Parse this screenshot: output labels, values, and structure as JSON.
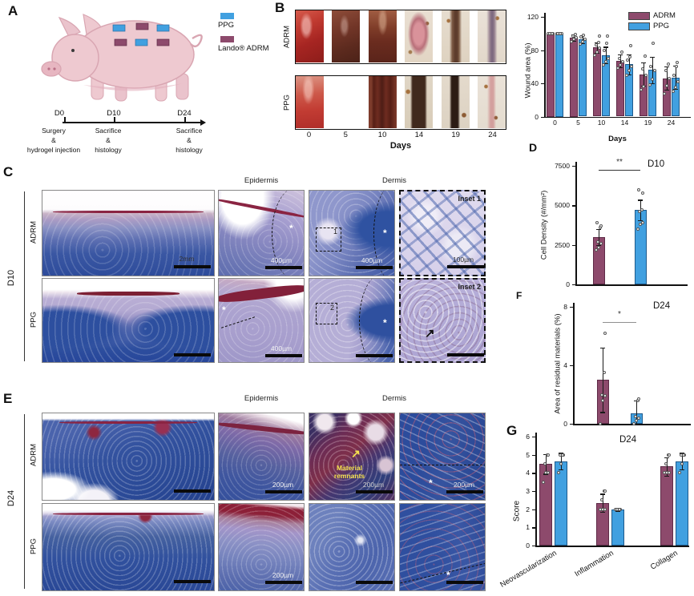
{
  "colors": {
    "adrm": "#8d4a6c",
    "ppg": "#41a0e0"
  },
  "panelA": {
    "letter": "A",
    "legend": [
      {
        "key": "ppg",
        "label": "PPG"
      },
      {
        "key": "adrm",
        "label": "Lando® ADRM"
      }
    ],
    "timeline": [
      {
        "day": "D0",
        "l1": "Surgery",
        "l2": "&",
        "l3": "hydrogel injection"
      },
      {
        "day": "D10",
        "l1": "Sacrifice",
        "l2": "&",
        "l3": "histology"
      },
      {
        "day": "D24",
        "l1": "Sacrifice",
        "l2": "&",
        "l3": "histology"
      }
    ]
  },
  "panelB": {
    "letter": "B",
    "rows": [
      "ADRM",
      "PPG"
    ],
    "days": [
      "0",
      "5",
      "10",
      "14",
      "19",
      "24"
    ],
    "xlabel": "Days"
  },
  "panelC": {
    "letter": "C",
    "group_label": "D10",
    "rows": [
      "ADRM",
      "PPG"
    ],
    "headers": [
      "Epidermis",
      "Dermis"
    ],
    "scale_overview": "2mm",
    "scale_epidermis": "400µm",
    "scale_dermis": "400µm",
    "inset1_label": "Inset 1",
    "inset1_scale": "100µm",
    "inset2_label": "Inset 2",
    "box1": "1",
    "box2": "2",
    "asterisk": "*",
    "arrow": "↗"
  },
  "panelD": {
    "letter": "D"
  },
  "panelE": {
    "letter": "E",
    "group_label": "D24",
    "rows": [
      "ADRM",
      "PPG"
    ],
    "headers": [
      "Epidermis",
      "Dermis"
    ],
    "scale": "200µm",
    "material_label": "Material remnants",
    "asterisk": "*",
    "arrow": "↗"
  },
  "panelF": {
    "letter": "F"
  },
  "panelG": {
    "letter": "G"
  },
  "chart_data": [
    {
      "id": "wound_area",
      "type": "bar",
      "ylabel": "Wound area (%)",
      "xlabel": "Days",
      "ylim": [
        0,
        120
      ],
      "yticks": [
        0,
        40,
        80,
        120
      ],
      "categories": [
        "0",
        "5",
        "10",
        "14",
        "19",
        "24"
      ],
      "legend_position": "top-right",
      "series": [
        {
          "name": "ADRM",
          "color_key": "adrm",
          "values": [
            100,
            95,
            83,
            67,
            51,
            46
          ],
          "errors": [
            1,
            4,
            6,
            8,
            14,
            14
          ],
          "points": [
            [
              100,
              100,
              100,
              100,
              100
            ],
            [
              90,
              93,
              95,
              97,
              99
            ],
            [
              74,
              78,
              82,
              86,
              89,
              97
            ],
            [
              58,
              62,
              66,
              70,
              78
            ],
            [
              32,
              36,
              50,
              57,
              73
            ],
            [
              27,
              37,
              46,
              55,
              63
            ]
          ]
        },
        {
          "name": "PPG",
          "color_key": "ppg",
          "values": [
            100,
            93,
            74,
            63,
            56,
            47
          ],
          "errors": [
            1,
            5,
            10,
            12,
            16,
            14
          ],
          "points": [
            [
              100,
              100,
              100,
              100,
              100
            ],
            [
              87,
              90,
              93,
              96,
              98
            ],
            [
              62,
              66,
              70,
              80,
              88,
              97
            ],
            [
              50,
              55,
              60,
              68,
              72,
              85
            ],
            [
              38,
              45,
              55,
              60,
              88
            ],
            [
              30,
              35,
              42,
              50,
              60,
              65
            ]
          ]
        }
      ]
    },
    {
      "id": "cell_density",
      "type": "bar",
      "corner_label": "D10",
      "ylabel": "Cell Density (#/mm²)",
      "ylim": [
        0,
        7500
      ],
      "yticks": [
        0,
        2500,
        5000,
        7500
      ],
      "categories": [
        ""
      ],
      "sig_label": "**",
      "series": [
        {
          "name": "ADRM",
          "color_key": "adrm",
          "values": [
            3000
          ],
          "errors": [
            500
          ],
          "points": [
            [
              2200,
              2350,
              2600,
              2700,
              3600,
              3700,
              3900
            ]
          ]
        },
        {
          "name": "PPG",
          "color_key": "ppg",
          "values": [
            4700
          ],
          "errors": [
            650
          ],
          "points": [
            [
              3500,
              3800,
              3900,
              4600,
              4700,
              5800,
              6000
            ]
          ]
        }
      ]
    },
    {
      "id": "residual_materials",
      "type": "bar",
      "corner_label": "D24",
      "ylabel": "Area of residual materials (%)",
      "ylim": [
        0,
        8
      ],
      "yticks": [
        0,
        4,
        8
      ],
      "categories": [
        ""
      ],
      "sig_label": "*",
      "series": [
        {
          "name": "ADRM",
          "color_key": "adrm",
          "values": [
            3.0
          ],
          "errors": [
            2.2
          ],
          "points": [
            [
              0,
              1.6,
              1.9,
              2.0,
              3.5,
              6.2
            ]
          ]
        },
        {
          "name": "PPG",
          "color_key": "ppg",
          "values": [
            0.7
          ],
          "errors": [
            0.9
          ],
          "points": [
            [
              0,
              0.2,
              0.4,
              0.5,
              1.6,
              1.7
            ]
          ]
        }
      ]
    },
    {
      "id": "score",
      "type": "bar",
      "corner_label": "D24",
      "ylabel": "Score",
      "ylim": [
        0,
        6
      ],
      "yticks": [
        0,
        1,
        2,
        3,
        4,
        5,
        6
      ],
      "categories": [
        "Neovascularization",
        "Inflammation",
        "Collagen"
      ],
      "series": [
        {
          "name": "ADRM",
          "color_key": "adrm",
          "values": [
            4.5,
            2.35,
            4.35
          ],
          "errors": [
            0.55,
            0.5,
            0.5
          ],
          "points": [
            [
              3.5,
              4,
              4,
              4.5,
              5,
              5
            ],
            [
              2,
              2,
              2,
              2.5,
              3,
              3
            ],
            [
              4,
              4,
              4,
              4.5,
              5,
              5
            ]
          ]
        },
        {
          "name": "PPG",
          "color_key": "ppg",
          "values": [
            4.65,
            2.0,
            4.65
          ],
          "errors": [
            0.45,
            0.08,
            0.45
          ],
          "points": [
            [
              4,
              4.5,
              5,
              5,
              5
            ],
            [
              2,
              2,
              2,
              2,
              2
            ],
            [
              4,
              4.5,
              5,
              5,
              5
            ]
          ]
        }
      ]
    }
  ]
}
